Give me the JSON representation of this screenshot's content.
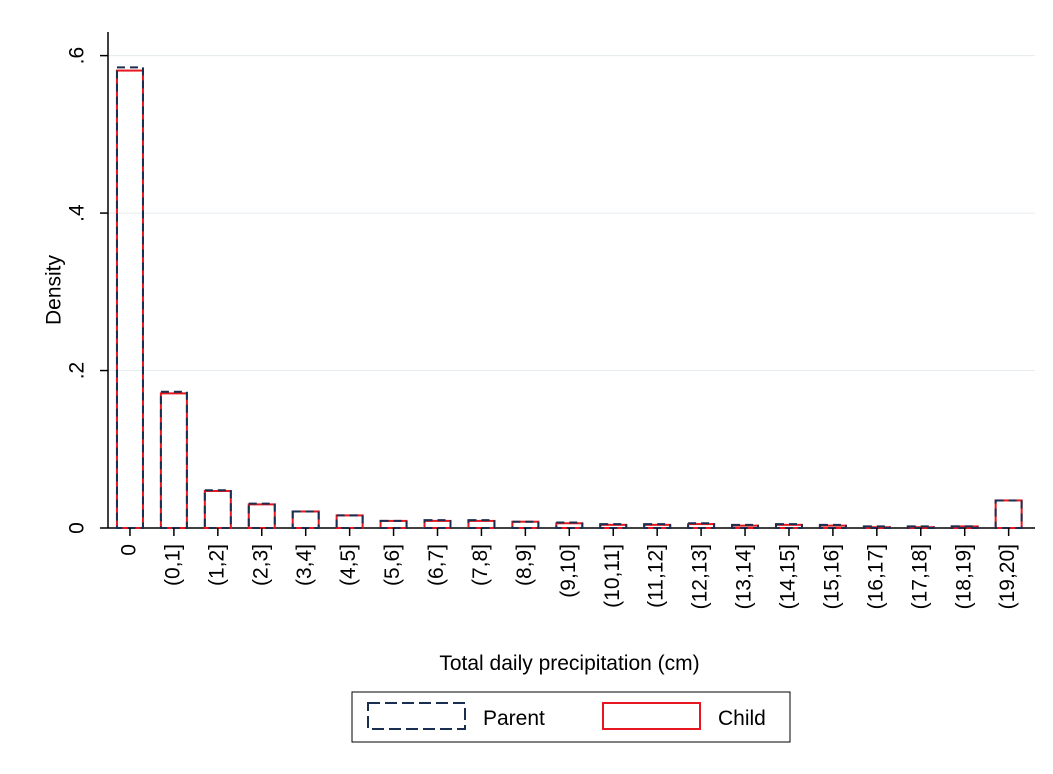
{
  "chart_data": {
    "type": "bar",
    "xlabel": "Total daily precipitation (cm)",
    "ylabel": "Density",
    "ylim": [
      0,
      0.63
    ],
    "yticks": [
      {
        "value": 0,
        "label": "0"
      },
      {
        "value": 0.2,
        "label": ".2"
      },
      {
        "value": 0.4,
        "label": ".4"
      },
      {
        "value": 0.6,
        "label": ".6"
      }
    ],
    "grid": true,
    "legend_position": "bottom",
    "categories": [
      "0",
      "(0,1]",
      "(1,2]",
      "(2,3]",
      "(3,4]",
      "(4,5]",
      "(5,6]",
      "(6,7]",
      "(7,8]",
      "(8,9]",
      "(9,10]",
      "(10,11]",
      "(11,12]",
      "(12,13]",
      "(13,14]",
      "(14,15]",
      "(15,16]",
      "(16,17]",
      "(17,18]",
      "(18,19]",
      "(19,20]"
    ],
    "series": [
      {
        "name": "Parent",
        "color": "#1a2f4f",
        "style": "dashed",
        "values": [
          0.585,
          0.173,
          0.048,
          0.031,
          0.021,
          0.016,
          0.009,
          0.01,
          0.01,
          0.008,
          0.007,
          0.005,
          0.005,
          0.006,
          0.004,
          0.005,
          0.004,
          0.002,
          0.002,
          0.002,
          0.035
        ]
      },
      {
        "name": "Child",
        "color": "#e8171f",
        "style": "solid",
        "values": [
          0.581,
          0.171,
          0.047,
          0.03,
          0.021,
          0.016,
          0.009,
          0.009,
          0.009,
          0.008,
          0.006,
          0.004,
          0.004,
          0.005,
          0.003,
          0.004,
          0.003,
          0.001,
          0.001,
          0.002,
          0.035
        ]
      }
    ]
  }
}
